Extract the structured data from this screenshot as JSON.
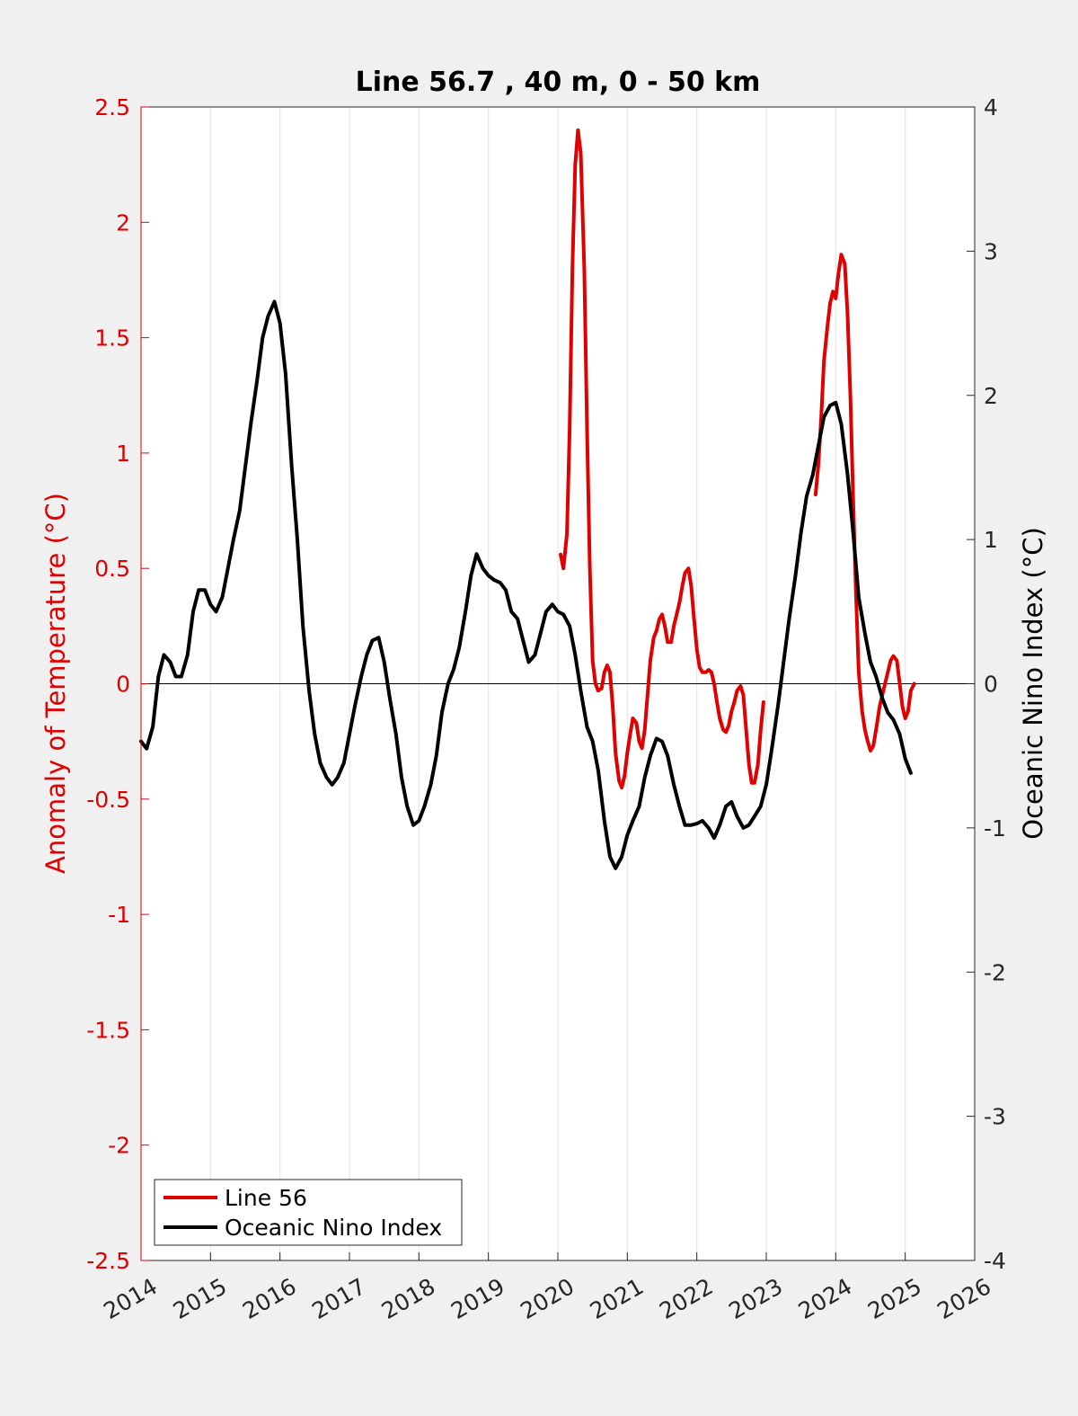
{
  "chart_data": {
    "type": "line",
    "title": "Line 56.7 , 40 m, 0 - 50 km",
    "xlabel": "",
    "ylabel_left": "Anomaly of Temperature (°C)",
    "ylabel_right": "Oceanic Nino Index (°C)",
    "xlim": [
      2014,
      2026
    ],
    "ylim_left": [
      -2.5,
      2.5
    ],
    "ylim_right": [
      -4,
      4
    ],
    "xticks": [
      "2014",
      "2015",
      "2016",
      "2017",
      "2018",
      "2019",
      "2020",
      "2021",
      "2022",
      "2023",
      "2024",
      "2025",
      "2026"
    ],
    "yticks_left": [
      "2.5",
      "2",
      "1.5",
      "1",
      "0.5",
      "0",
      "-0.5",
      "-1",
      "-1.5",
      "-2",
      "-2.5"
    ],
    "yticks_right": [
      "4",
      "3",
      "2",
      "1",
      "0",
      "-1",
      "-2",
      "-3",
      "-4"
    ],
    "grid": "vertical",
    "zero_line": true,
    "legend_position": "bottom-left",
    "colors": {
      "line56": "#e00000",
      "oni": "#000000",
      "left_axis": "#e00000",
      "right_axis": "#000000",
      "background": "#f0f0f0",
      "plot_bg": "#ffffff"
    },
    "series": [
      {
        "name": "Line 56",
        "axis": "left",
        "color": "#e00000",
        "segments": [
          [
            [
              2020.04,
              0.56
            ],
            [
              2020.08,
              0.5
            ],
            [
              2020.13,
              0.65
            ],
            [
              2020.17,
              1.1
            ],
            [
              2020.21,
              1.8
            ],
            [
              2020.25,
              2.25
            ],
            [
              2020.29,
              2.4
            ],
            [
              2020.33,
              2.3
            ],
            [
              2020.38,
              1.8
            ],
            [
              2020.42,
              1.1
            ],
            [
              2020.46,
              0.5
            ],
            [
              2020.5,
              0.1
            ],
            [
              2020.54,
              0.0
            ],
            [
              2020.58,
              -0.03
            ],
            [
              2020.63,
              -0.02
            ],
            [
              2020.67,
              0.05
            ],
            [
              2020.71,
              0.08
            ],
            [
              2020.75,
              0.05
            ],
            [
              2020.79,
              -0.1
            ],
            [
              2020.83,
              -0.3
            ],
            [
              2020.88,
              -0.42
            ],
            [
              2020.92,
              -0.45
            ],
            [
              2020.96,
              -0.4
            ],
            [
              2021.0,
              -0.3
            ],
            [
              2021.04,
              -0.22
            ],
            [
              2021.08,
              -0.15
            ],
            [
              2021.13,
              -0.17
            ],
            [
              2021.17,
              -0.25
            ],
            [
              2021.21,
              -0.28
            ],
            [
              2021.25,
              -0.2
            ],
            [
              2021.29,
              -0.05
            ],
            [
              2021.33,
              0.1
            ],
            [
              2021.38,
              0.2
            ],
            [
              2021.42,
              0.23
            ],
            [
              2021.46,
              0.28
            ],
            [
              2021.5,
              0.3
            ],
            [
              2021.54,
              0.25
            ],
            [
              2021.58,
              0.18
            ],
            [
              2021.63,
              0.18
            ],
            [
              2021.67,
              0.25
            ],
            [
              2021.71,
              0.3
            ],
            [
              2021.75,
              0.35
            ],
            [
              2021.79,
              0.42
            ],
            [
              2021.83,
              0.48
            ],
            [
              2021.88,
              0.5
            ],
            [
              2021.92,
              0.42
            ],
            [
              2021.96,
              0.28
            ],
            [
              2022.0,
              0.15
            ],
            [
              2022.04,
              0.07
            ],
            [
              2022.08,
              0.05
            ],
            [
              2022.13,
              0.05
            ],
            [
              2022.17,
              0.06
            ],
            [
              2022.21,
              0.05
            ],
            [
              2022.25,
              0.0
            ],
            [
              2022.29,
              -0.08
            ],
            [
              2022.33,
              -0.15
            ],
            [
              2022.38,
              -0.2
            ],
            [
              2022.42,
              -0.21
            ],
            [
              2022.46,
              -0.18
            ],
            [
              2022.5,
              -0.12
            ],
            [
              2022.54,
              -0.08
            ],
            [
              2022.58,
              -0.03
            ],
            [
              2022.63,
              -0.01
            ],
            [
              2022.67,
              -0.05
            ],
            [
              2022.71,
              -0.2
            ],
            [
              2022.75,
              -0.35
            ],
            [
              2022.79,
              -0.43
            ],
            [
              2022.83,
              -0.43
            ],
            [
              2022.88,
              -0.35
            ],
            [
              2022.92,
              -0.2
            ],
            [
              2022.96,
              -0.08
            ]
          ],
          [
            [
              2023.71,
              0.82
            ],
            [
              2023.75,
              0.95
            ],
            [
              2023.79,
              1.15
            ],
            [
              2023.83,
              1.4
            ],
            [
              2023.88,
              1.55
            ],
            [
              2023.92,
              1.65
            ],
            [
              2023.96,
              1.7
            ],
            [
              2024.0,
              1.67
            ],
            [
              2024.04,
              1.78
            ],
            [
              2024.08,
              1.86
            ],
            [
              2024.13,
              1.82
            ],
            [
              2024.17,
              1.6
            ],
            [
              2024.21,
              1.25
            ],
            [
              2024.25,
              0.8
            ],
            [
              2024.29,
              0.4
            ],
            [
              2024.33,
              0.05
            ],
            [
              2024.38,
              -0.12
            ],
            [
              2024.42,
              -0.2
            ],
            [
              2024.46,
              -0.25
            ],
            [
              2024.5,
              -0.29
            ],
            [
              2024.54,
              -0.27
            ],
            [
              2024.58,
              -0.2
            ],
            [
              2024.63,
              -0.1
            ],
            [
              2024.67,
              -0.05
            ],
            [
              2024.71,
              0.0
            ],
            [
              2024.75,
              0.05
            ],
            [
              2024.79,
              0.1
            ],
            [
              2024.83,
              0.12
            ],
            [
              2024.88,
              0.1
            ],
            [
              2024.92,
              0.0
            ],
            [
              2024.96,
              -0.1
            ],
            [
              2025.0,
              -0.15
            ],
            [
              2025.04,
              -0.12
            ],
            [
              2025.08,
              -0.03
            ],
            [
              2025.13,
              0.0
            ]
          ]
        ]
      },
      {
        "name": "Oceanic Nino Index",
        "axis": "right",
        "color": "#000000",
        "points": [
          [
            2014.0,
            -0.4
          ],
          [
            2014.08,
            -0.45
          ],
          [
            2014.17,
            -0.3
          ],
          [
            2014.25,
            0.05
          ],
          [
            2014.33,
            0.2
          ],
          [
            2014.42,
            0.15
          ],
          [
            2014.5,
            0.05
          ],
          [
            2014.58,
            0.05
          ],
          [
            2014.67,
            0.2
          ],
          [
            2014.75,
            0.5
          ],
          [
            2014.83,
            0.65
          ],
          [
            2014.92,
            0.65
          ],
          [
            2015.0,
            0.55
          ],
          [
            2015.08,
            0.5
          ],
          [
            2015.17,
            0.6
          ],
          [
            2015.25,
            0.8
          ],
          [
            2015.33,
            1.0
          ],
          [
            2015.42,
            1.2
          ],
          [
            2015.5,
            1.5
          ],
          [
            2015.58,
            1.8
          ],
          [
            2015.67,
            2.1
          ],
          [
            2015.75,
            2.4
          ],
          [
            2015.83,
            2.55
          ],
          [
            2015.92,
            2.65
          ],
          [
            2016.0,
            2.5
          ],
          [
            2016.08,
            2.15
          ],
          [
            2016.17,
            1.5
          ],
          [
            2016.25,
            1.0
          ],
          [
            2016.33,
            0.4
          ],
          [
            2016.42,
            -0.05
          ],
          [
            2016.5,
            -0.35
          ],
          [
            2016.58,
            -0.55
          ],
          [
            2016.67,
            -0.65
          ],
          [
            2016.75,
            -0.7
          ],
          [
            2016.83,
            -0.65
          ],
          [
            2016.92,
            -0.55
          ],
          [
            2017.0,
            -0.35
          ],
          [
            2017.08,
            -0.15
          ],
          [
            2017.17,
            0.05
          ],
          [
            2017.25,
            0.2
          ],
          [
            2017.33,
            0.3
          ],
          [
            2017.42,
            0.32
          ],
          [
            2017.5,
            0.15
          ],
          [
            2017.58,
            -0.1
          ],
          [
            2017.67,
            -0.35
          ],
          [
            2017.75,
            -0.65
          ],
          [
            2017.83,
            -0.85
          ],
          [
            2017.92,
            -0.98
          ],
          [
            2018.0,
            -0.95
          ],
          [
            2018.08,
            -0.85
          ],
          [
            2018.17,
            -0.7
          ],
          [
            2018.25,
            -0.5
          ],
          [
            2018.33,
            -0.2
          ],
          [
            2018.42,
            0.0
          ],
          [
            2018.5,
            0.1
          ],
          [
            2018.58,
            0.25
          ],
          [
            2018.67,
            0.5
          ],
          [
            2018.75,
            0.75
          ],
          [
            2018.83,
            0.9
          ],
          [
            2018.92,
            0.8
          ],
          [
            2019.0,
            0.75
          ],
          [
            2019.08,
            0.72
          ],
          [
            2019.17,
            0.7
          ],
          [
            2019.25,
            0.65
          ],
          [
            2019.33,
            0.5
          ],
          [
            2019.42,
            0.45
          ],
          [
            2019.5,
            0.3
          ],
          [
            2019.58,
            0.15
          ],
          [
            2019.67,
            0.2
          ],
          [
            2019.75,
            0.35
          ],
          [
            2019.83,
            0.5
          ],
          [
            2019.92,
            0.55
          ],
          [
            2020.0,
            0.5
          ],
          [
            2020.08,
            0.48
          ],
          [
            2020.17,
            0.4
          ],
          [
            2020.25,
            0.2
          ],
          [
            2020.33,
            -0.05
          ],
          [
            2020.42,
            -0.3
          ],
          [
            2020.5,
            -0.4
          ],
          [
            2020.58,
            -0.6
          ],
          [
            2020.67,
            -0.95
          ],
          [
            2020.75,
            -1.2
          ],
          [
            2020.83,
            -1.28
          ],
          [
            2020.92,
            -1.2
          ],
          [
            2021.0,
            -1.05
          ],
          [
            2021.08,
            -0.95
          ],
          [
            2021.17,
            -0.85
          ],
          [
            2021.25,
            -0.65
          ],
          [
            2021.33,
            -0.5
          ],
          [
            2021.42,
            -0.38
          ],
          [
            2021.5,
            -0.4
          ],
          [
            2021.58,
            -0.5
          ],
          [
            2021.67,
            -0.7
          ],
          [
            2021.75,
            -0.85
          ],
          [
            2021.83,
            -0.98
          ],
          [
            2021.92,
            -0.98
          ],
          [
            2022.0,
            -0.97
          ],
          [
            2022.08,
            -0.95
          ],
          [
            2022.17,
            -1.0
          ],
          [
            2022.25,
            -1.07
          ],
          [
            2022.33,
            -0.98
          ],
          [
            2022.42,
            -0.85
          ],
          [
            2022.5,
            -0.82
          ],
          [
            2022.58,
            -0.92
          ],
          [
            2022.67,
            -1.0
          ],
          [
            2022.75,
            -0.98
          ],
          [
            2022.83,
            -0.92
          ],
          [
            2022.92,
            -0.85
          ],
          [
            2023.0,
            -0.7
          ],
          [
            2023.08,
            -0.45
          ],
          [
            2023.17,
            -0.15
          ],
          [
            2023.25,
            0.15
          ],
          [
            2023.33,
            0.45
          ],
          [
            2023.42,
            0.75
          ],
          [
            2023.5,
            1.05
          ],
          [
            2023.58,
            1.3
          ],
          [
            2023.67,
            1.45
          ],
          [
            2023.75,
            1.65
          ],
          [
            2023.83,
            1.85
          ],
          [
            2023.92,
            1.93
          ],
          [
            2024.0,
            1.95
          ],
          [
            2024.08,
            1.8
          ],
          [
            2024.17,
            1.45
          ],
          [
            2024.25,
            1.05
          ],
          [
            2024.33,
            0.6
          ],
          [
            2024.42,
            0.35
          ],
          [
            2024.5,
            0.15
          ],
          [
            2024.58,
            0.05
          ],
          [
            2024.67,
            -0.1
          ],
          [
            2024.75,
            -0.2
          ],
          [
            2024.83,
            -0.25
          ],
          [
            2024.92,
            -0.35
          ],
          [
            2025.0,
            -0.52
          ],
          [
            2025.08,
            -0.62
          ]
        ]
      }
    ]
  }
}
